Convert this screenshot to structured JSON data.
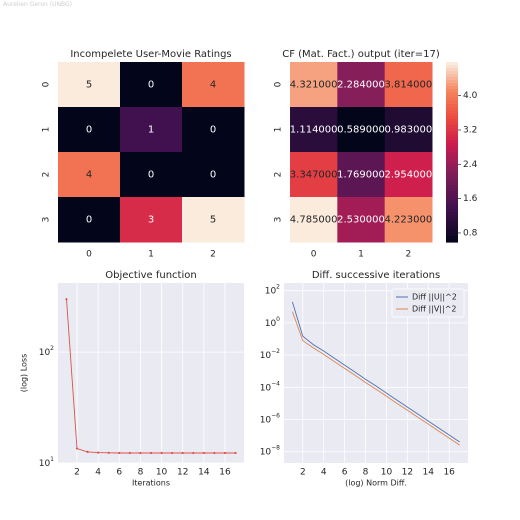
{
  "watermark": "Aurelien Geron (UNBG)",
  "colors": {
    "axes_bg": "#eaeaf2",
    "grid": "#ffffff",
    "loss_line": "#d9534f",
    "u_line": "#4c72b0",
    "v_line": "#dd8452",
    "heat_dark_text": "#262626",
    "heat_light_text": "#ffffff"
  },
  "chart_data": [
    {
      "type": "heatmap",
      "title": "Incompelete User-Movie Ratings",
      "xticklabels": [
        "0",
        "1",
        "2"
      ],
      "yticklabels": [
        "0",
        "1",
        "2",
        "3"
      ],
      "values": [
        [
          5,
          0,
          4
        ],
        [
          0,
          1,
          0
        ],
        [
          4,
          0,
          0
        ],
        [
          0,
          3,
          5
        ]
      ],
      "labels": [
        [
          "5",
          "0",
          "4"
        ],
        [
          "0",
          "1",
          "0"
        ],
        [
          "4",
          "0",
          "0"
        ],
        [
          "0",
          "3",
          "5"
        ]
      ],
      "vmin": 0,
      "vmax": 5,
      "colorbar": false
    },
    {
      "type": "heatmap",
      "title": "CF (Mat. Fact.) output (iter=17)",
      "xticklabels": [
        "0",
        "1",
        "2"
      ],
      "yticklabels": [
        "0",
        "1",
        "2",
        "3"
      ],
      "values": [
        [
          4.321,
          2.284,
          3.814
        ],
        [
          1.114,
          0.589,
          0.983
        ],
        [
          3.347,
          1.769,
          2.954
        ],
        [
          4.785,
          2.53,
          4.223
        ]
      ],
      "labels": [
        [
          "4.321000",
          "2.284000",
          "3.814000"
        ],
        [
          "1.114000",
          "0.589000",
          "0.983000"
        ],
        [
          "3.347000",
          "1.769000",
          "2.954000"
        ],
        [
          "4.785000",
          "2.530000",
          "4.223000"
        ]
      ],
      "vmin": 0.589,
      "vmax": 4.785,
      "colorbar": true,
      "colorbar_ticks": [
        "0.8",
        "1.6",
        "2.4",
        "3.2",
        "4.0"
      ]
    },
    {
      "type": "line",
      "title": "Objective function",
      "xlabel": "Iterations",
      "ylabel": "(log) Loss",
      "yscale": "log",
      "xlim": [
        0.2,
        17.8
      ],
      "ylim": [
        10,
        420
      ],
      "xticks": [
        "2",
        "4",
        "6",
        "8",
        "10",
        "12",
        "14",
        "16"
      ],
      "yticks": [
        {
          "base": "10",
          "exp": "1"
        },
        {
          "base": "10",
          "exp": "2"
        }
      ],
      "grid": true,
      "x": [
        1,
        2,
        3,
        4,
        5,
        6,
        7,
        8,
        9,
        10,
        11,
        12,
        13,
        14,
        15,
        16,
        17
      ],
      "series": [
        {
          "values": [
            300,
            13.5,
            12.6,
            12.4,
            12.35,
            12.3,
            12.3,
            12.3,
            12.3,
            12.3,
            12.3,
            12.3,
            12.3,
            12.3,
            12.3,
            12.3,
            12.3
          ]
        }
      ]
    },
    {
      "type": "line",
      "title": "Diff. successive iterations",
      "xlabel": "(log) Norm Diff.",
      "ylabel": "",
      "yscale": "log",
      "xlim": [
        0.2,
        17.8
      ],
      "ylim": [
        2e-09,
        300
      ],
      "xticks": [
        "2",
        "4",
        "6",
        "8",
        "10",
        "12",
        "14",
        "16"
      ],
      "yticks": [
        {
          "base": "10",
          "exp": "2"
        },
        {
          "base": "10",
          "exp": "0"
        },
        {
          "base": "10",
          "exp": "−2"
        },
        {
          "base": "10",
          "exp": "−4"
        },
        {
          "base": "10",
          "exp": "−6"
        },
        {
          "base": "10",
          "exp": "−8"
        }
      ],
      "grid": true,
      "legend": "top-right",
      "x": [
        1,
        2,
        3,
        4,
        5,
        6,
        7,
        8,
        9,
        10,
        11,
        12,
        13,
        14,
        15,
        16,
        17
      ],
      "series": [
        {
          "name": "Diff ||U||^2",
          "values": [
            20,
            0.15,
            0.045,
            0.018,
            0.0065,
            0.0024,
            0.00088,
            0.00032,
            0.00012,
            4.4e-05,
            1.6e-05,
            5.9e-06,
            2.2e-06,
            8e-07,
            3e-07,
            1.1e-07,
            4e-08
          ]
        },
        {
          "name": "Diff ||V||^2",
          "values": [
            5,
            0.08,
            0.028,
            0.011,
            0.004,
            0.0015,
            0.00055,
            0.0002,
            7.5e-05,
            2.8e-05,
            1e-05,
            3.8e-06,
            1.4e-06,
            5.2e-07,
            1.9e-07,
            7e-08,
            2.6e-08
          ]
        }
      ]
    }
  ]
}
